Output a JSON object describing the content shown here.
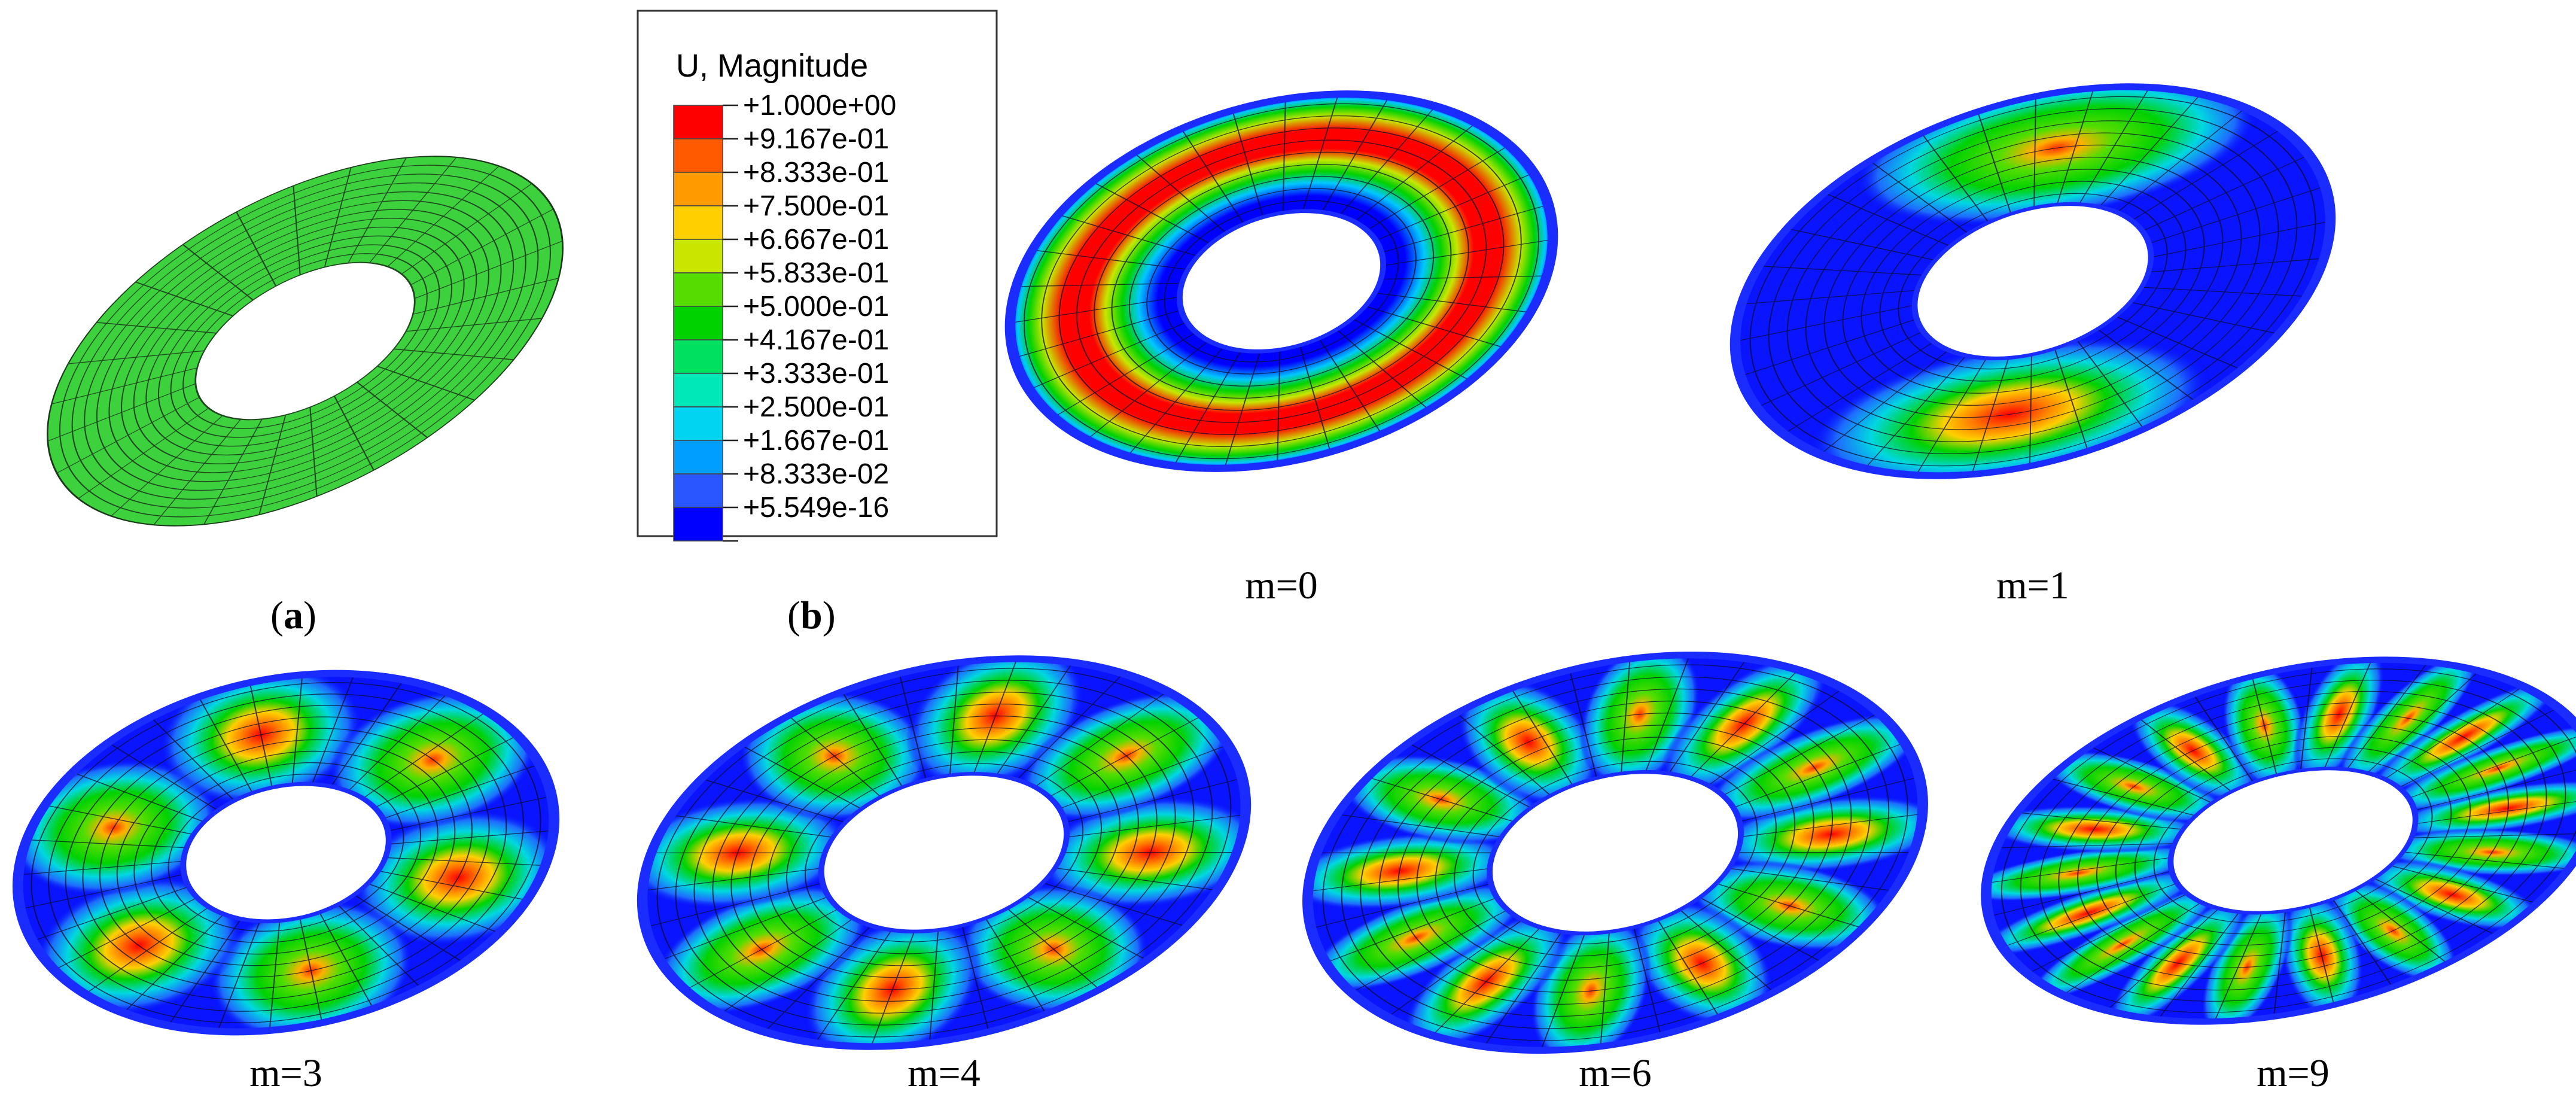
{
  "legend": {
    "title": "U, Magnitude",
    "entries": [
      "+1.000e+00",
      "+9.167e-01",
      "+8.333e-01",
      "+7.500e-01",
      "+6.667e-01",
      "+5.833e-01",
      "+5.000e-01",
      "+4.167e-01",
      "+3.333e-01",
      "+2.500e-01",
      "+1.667e-01",
      "+8.333e-02",
      "+5.549e-16"
    ],
    "colors": [
      "#ff0000",
      "#ff5a00",
      "#ff9a00",
      "#ffcf00",
      "#c8e600",
      "#55dd00",
      "#00d200",
      "#00e060",
      "#00e8b8",
      "#00d4f0",
      "#009eff",
      "#2a56ff",
      "#0000ff"
    ]
  },
  "panels": [
    {
      "label_paren_open": "(",
      "label": "a",
      "label_paren_close": ")",
      "kind": "mesh",
      "base_color": "#3ed13e"
    },
    {
      "label_paren_open": "(",
      "label": "b",
      "label_paren_close": ")",
      "kind": "legend"
    },
    {
      "caption": "m=0",
      "kind": "mode",
      "m": 0
    },
    {
      "caption": "m=1",
      "kind": "mode",
      "m": 1
    },
    {
      "caption": "m=3",
      "kind": "mode",
      "m": 3
    },
    {
      "caption": "m=4",
      "kind": "mode",
      "m": 4
    },
    {
      "caption": "m=6",
      "kind": "mode",
      "m": 6
    },
    {
      "caption": "m=9",
      "kind": "mode",
      "m": 9
    }
  ]
}
